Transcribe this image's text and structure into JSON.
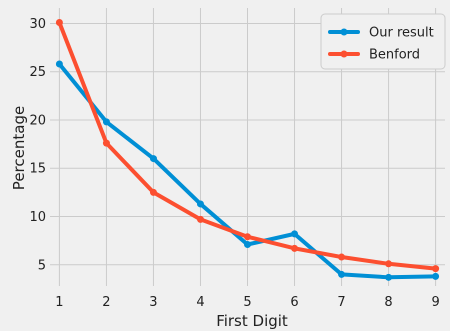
{
  "chart_data": {
    "type": "line",
    "title": "",
    "xlabel": "First Digit",
    "ylabel": "Percentage",
    "x": [
      1,
      2,
      3,
      4,
      5,
      6,
      7,
      8,
      9
    ],
    "xticks": [
      "1",
      "2",
      "3",
      "4",
      "5",
      "6",
      "7",
      "8",
      "9"
    ],
    "yticks": [
      "5",
      "10",
      "15",
      "20",
      "25",
      "30"
    ],
    "xlim": [
      0.8,
      9.2
    ],
    "ylim": [
      2.8,
      31.6
    ],
    "grid": true,
    "legend_position": "top-right",
    "series": [
      {
        "name": "Our result",
        "color": "#008fd5",
        "values": [
          25.8,
          19.8,
          16.0,
          11.3,
          7.1,
          8.2,
          4.0,
          3.7,
          3.8
        ]
      },
      {
        "name": "Benford",
        "color": "#fc4f30",
        "values": [
          30.1,
          17.6,
          12.5,
          9.7,
          7.9,
          6.7,
          5.8,
          5.1,
          4.6
        ]
      }
    ],
    "colors": {
      "background": "#f0f0f0",
      "grid": "#cbcbcb"
    }
  }
}
